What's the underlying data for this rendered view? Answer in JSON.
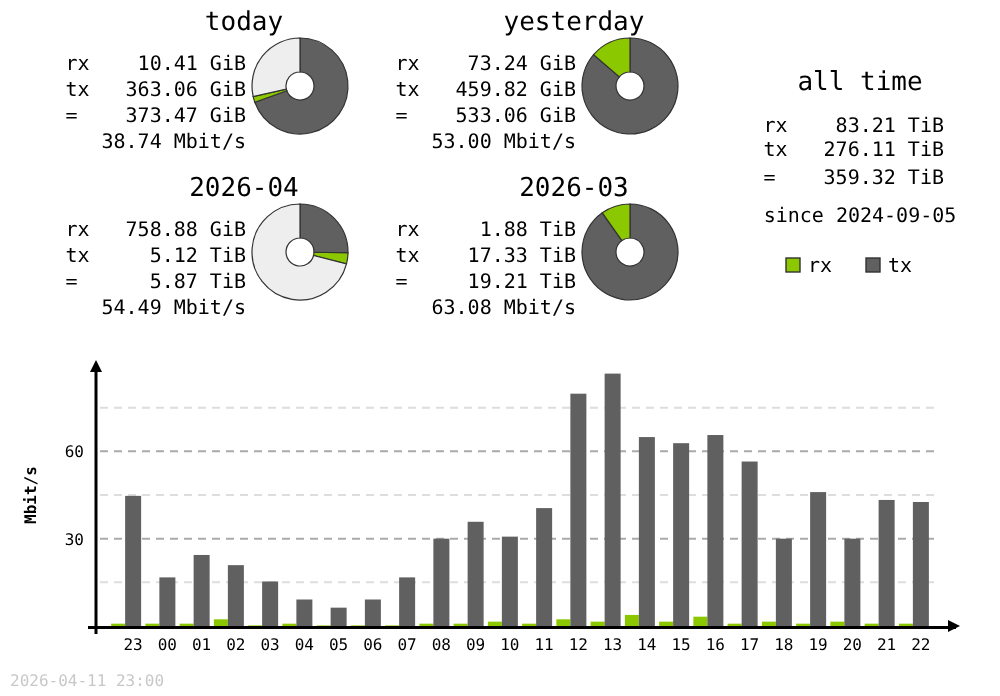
{
  "chart_data": [
    {
      "type": "donut",
      "title": "today",
      "categories": [
        null,
        null,
        null
      ],
      "values": [
        69.5,
        2.0,
        28.5
      ],
      "colors": [
        "#606060",
        "#8cc800",
        "#eeeeee"
      ],
      "annotations": [
        "rx    10.41 GiB",
        "tx   363.06 GiB",
        "=    373.47 GiB",
        "  38.74 Mbit/s"
      ]
    },
    {
      "type": "donut",
      "title": "yesterday",
      "categories": [
        null,
        null
      ],
      "values": [
        86.3,
        13.7
      ],
      "colors": [
        "#606060",
        "#8cc800"
      ],
      "annotations": [
        "rx    73.24 GiB",
        "tx   459.82 GiB",
        "=    533.06 GiB",
        "  53.00 Mbit/s"
      ]
    },
    {
      "type": "donut",
      "title": "2026-04",
      "categories": [
        null,
        null,
        null
      ],
      "values": [
        25.3,
        3.7,
        71.0
      ],
      "colors": [
        "#606060",
        "#8cc800",
        "#eeeeee"
      ],
      "annotations": [
        "rx   758.88 GiB",
        "tx     5.12 TiB",
        "=      5.87 TiB",
        "  54.49 Mbit/s"
      ]
    },
    {
      "type": "donut",
      "title": "2026-03",
      "categories": [
        null,
        null
      ],
      "values": [
        90.2,
        9.8
      ],
      "colors": [
        "#606060",
        "#8cc800"
      ],
      "annotations": [
        "rx     1.88 TiB",
        "tx    17.33 TiB",
        "=     19.21 TiB",
        "  63.08 Mbit/s"
      ]
    },
    {
      "type": "other",
      "title": "all time",
      "annotations": [
        "rx    83.21 TiB",
        "tx   276.11 TiB",
        "=    359.32 TiB",
        "since 2024-09-05"
      ]
    },
    {
      "type": "bar",
      "ylabel": "Mbit/s",
      "categories": [
        "23",
        "00",
        "01",
        "02",
        "03",
        "04",
        "05",
        "06",
        "07",
        "08",
        "09",
        "10",
        "11",
        "12",
        "13",
        "14",
        "15",
        "16",
        "17",
        "18",
        "19",
        "20",
        "21",
        "22"
      ],
      "series": [
        {
          "name": "rx",
          "color": "#8cc800",
          "values": [
            0.8,
            0.8,
            0.8,
            2.3,
            0.2,
            0.8,
            0.2,
            0.2,
            0.2,
            0.8,
            0.8,
            1.5,
            0.8,
            2.3,
            1.5,
            3.8,
            1.5,
            3.2,
            0.8,
            1.5,
            0.8,
            1.5,
            0.8,
            0.8
          ]
        },
        {
          "name": "tx",
          "color": "#606060",
          "values": [
            44.7,
            16.7,
            24.4,
            20.9,
            15.3,
            9.1,
            6.3,
            9.1,
            16.7,
            30,
            35.8,
            30.7,
            40.5,
            79.8,
            86.7,
            64.9,
            62.8,
            65.6,
            56.5,
            30,
            46,
            30,
            43.3,
            42.6
          ]
        }
      ],
      "ylim": [
        0,
        90
      ],
      "yticks": [
        {
          "value": 15,
          "label": null
        },
        30,
        {
          "value": 45,
          "label": null
        },
        60,
        {
          "value": 75,
          "label": null
        }
      ],
      "grid": "y",
      "legend": "top right",
      "annotations": [
        "2026-04-11 23:00"
      ]
    }
  ]
}
